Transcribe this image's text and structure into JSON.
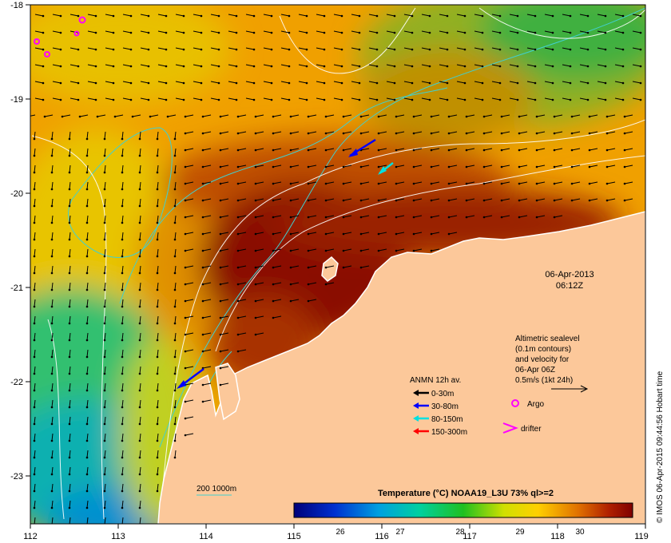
{
  "map": {
    "date_line": "06-Apr-2013",
    "time_line": "06:12Z",
    "lon_ticks": [
      "112",
      "113",
      "114",
      "115",
      "116",
      "117",
      "118",
      "119"
    ],
    "lat_ticks": [
      "-18",
      "-19",
      "-20",
      "-21",
      "-22",
      "-23"
    ],
    "altimetry": {
      "line1": "Altimetric sealevel",
      "line2": "(0.1m contours)",
      "line3": "and velocity for",
      "line4": "06-Apr 06Z",
      "line5": "0.5m/s (1kt 24h)"
    },
    "anmn": {
      "title": "ANMN 12h av.",
      "items": [
        {
          "label": "0-30m",
          "color": "#000000"
        },
        {
          "label": "30-80m",
          "color": "#0000ff"
        },
        {
          "label": "80-150m",
          "color": "#00e0e0"
        },
        {
          "label": "150-300m",
          "color": "#ff0000"
        }
      ]
    },
    "argo_label": "Argo",
    "drifter_label": "drifter",
    "isobath_label": "200  1000m",
    "colorbar": {
      "title": "Temperature (°C) NOAA19_L3U 73% ql>=2",
      "ticks": [
        "26",
        "27",
        "28",
        "29",
        "30"
      ]
    },
    "credit": "© IMOS 06-Apr-2015 09:44:56 Hobart time",
    "colors": {
      "land": "#fcc89a",
      "isobath": "#40d0d0",
      "marker": "#ff00ff"
    }
  }
}
